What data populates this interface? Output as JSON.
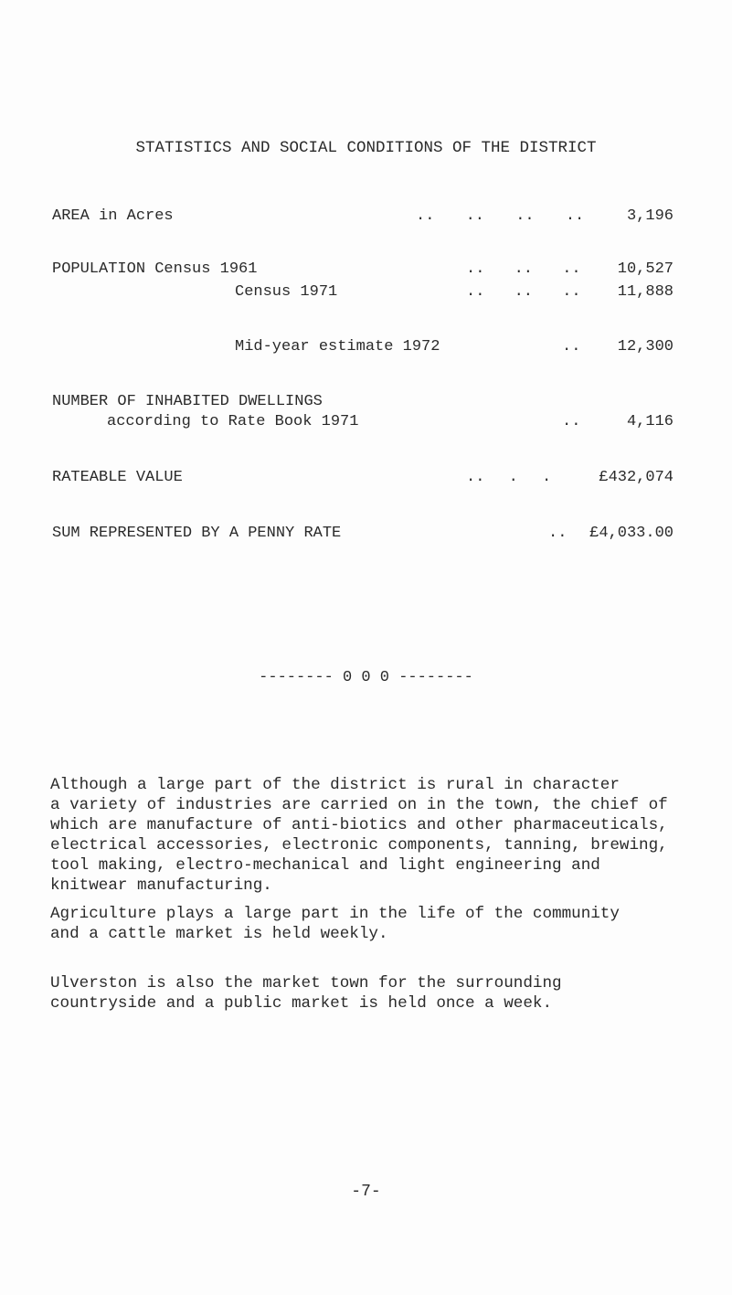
{
  "title": "STATISTICS AND SOCIAL CONDITIONS OF THE DISTRICT",
  "stats": {
    "area": {
      "label": "AREA in Acres",
      "dots": ".. .. .. ..",
      "value": "3,196"
    },
    "pop1961": {
      "label": "POPULATION Census 1961",
      "dots": ".. .. ..",
      "value": "10,527"
    },
    "pop1971": {
      "label": "Census 1971",
      "dots": ".. .. ..",
      "value": "11,888"
    },
    "midyear": {
      "label": "Mid-year estimate 1972",
      "dots": "..",
      "value": "12,300"
    },
    "dwellings": {
      "label": "NUMBER OF INHABITED DWELLINGS",
      "label2": "according to Rate Book 1971",
      "dots": "..",
      "value": "4,116"
    },
    "rateable": {
      "label": "RATEABLE VALUE",
      "dots": ".. . .",
      "value": "£432,074"
    },
    "penny": {
      "label": "SUM REPRESENTED BY A PENNY RATE",
      "dots": "..",
      "value": "£4,033.00"
    }
  },
  "separator": "-------- 0 0 0 --------",
  "paragraphs": [
    "Although a large part of the district is rural in character\na variety of industries are carried on in the town, the chief of\nwhich are manufacture of anti-biotics and other pharmaceuticals,\nelectrical accessories, electronic components, tanning, brewing,\ntool making, electro-mechanical and light engineering and\nknitwear manufacturing.",
    "Agriculture plays a large part in the life of the community\nand a cattle market is held weekly.",
    "Ulverston is also the market town for the surrounding\ncountryside and a public market is held once a week."
  ],
  "page_number": "-7-"
}
